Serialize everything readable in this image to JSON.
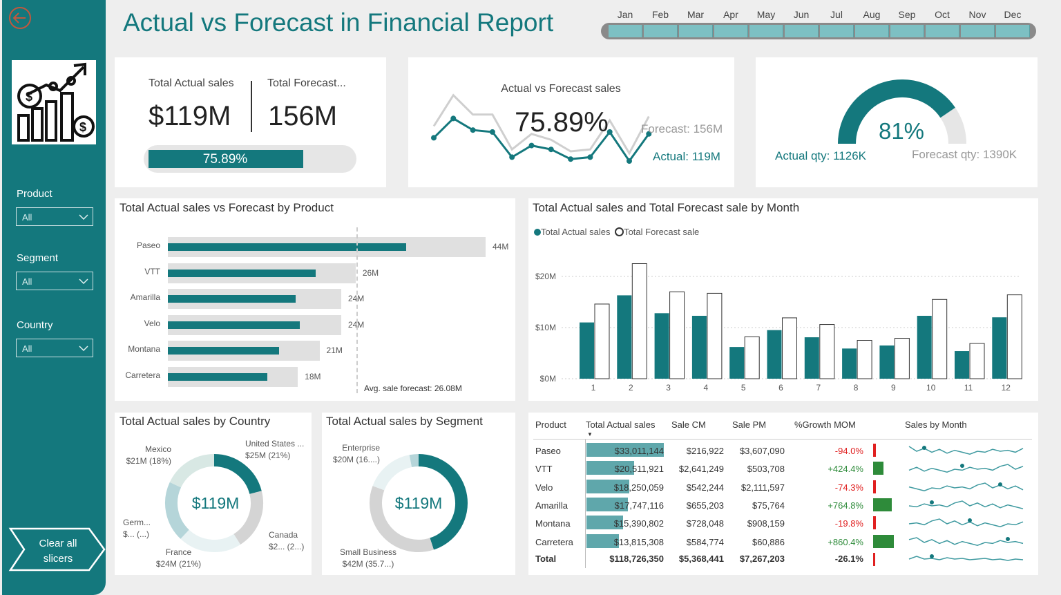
{
  "page": {
    "title": "Actual vs Forecast in Financial Report"
  },
  "colors": {
    "accent": "#14787d",
    "bar_bg": "#e0e0e0",
    "negative": "#e02020",
    "positive": "#2e8b3a"
  },
  "months": [
    "Jan",
    "Feb",
    "Mar",
    "Apr",
    "May",
    "Jun",
    "Jul",
    "Aug",
    "Sep",
    "Oct",
    "Nov",
    "Dec"
  ],
  "sidebar": {
    "back_icon": "back-arrow-icon",
    "logo_icon": "finance-growth-icon",
    "slicers": [
      {
        "label": "Product",
        "value": "All"
      },
      {
        "label": "Segment",
        "value": "All"
      },
      {
        "label": "Country",
        "value": "All"
      }
    ],
    "clear_label": "Clear all slicers"
  },
  "kpi": {
    "actual_label": "Total Actual sales",
    "actual_value": "$119M",
    "forecast_label": "Total Forecast...",
    "forecast_value": "156M",
    "progress_label": "75.89%",
    "progress": 0.7589
  },
  "line_card": {
    "title": "Actual vs Forecast sales",
    "value": "75.89%",
    "forecast_label": "Forecast: 156M",
    "actual_label": "Actual: 119M",
    "actual": [
      11,
      16,
      13,
      12.5,
      6,
      9,
      8,
      5.5,
      6,
      12.5,
      5,
      12
    ],
    "forecast": [
      14,
      22,
      17,
      17,
      8,
      12,
      10.5,
      7.5,
      8,
      15.5,
      7,
      16.5
    ]
  },
  "gauge": {
    "value_label": "81%",
    "value": 0.81,
    "actual_label": "Actual qty: 1126K",
    "forecast_label": "Forecast qty: 1390K"
  },
  "product_chart": {
    "title": "Total Actual sales vs Forecast by Product",
    "items": [
      {
        "name": "Paseo",
        "actual": 33.0,
        "forecast": 44,
        "label": "44M"
      },
      {
        "name": "VTT",
        "actual": 20.5,
        "forecast": 26,
        "label": "26M"
      },
      {
        "name": "Amarilla",
        "actual": 17.7,
        "forecast": 24,
        "label": "24M"
      },
      {
        "name": "Velo",
        "actual": 18.3,
        "forecast": 24,
        "label": "24M"
      },
      {
        "name": "Montana",
        "actual": 15.4,
        "forecast": 21,
        "label": "21M"
      },
      {
        "name": "Carretera",
        "actual": 13.8,
        "forecast": 18,
        "label": "18M"
      }
    ],
    "avg": 26.08,
    "avg_label": "Avg. sale forecast: 26.08M"
  },
  "chart_data": {
    "type": "bar",
    "title": "Total Actual sales and Total Forecast sale by Month",
    "categories": [
      "1",
      "2",
      "3",
      "4",
      "5",
      "6",
      "7",
      "8",
      "9",
      "10",
      "11",
      "12"
    ],
    "series": [
      {
        "name": "Total Actual sales",
        "values": [
          11,
          16.3,
          12.8,
          12.3,
          6.2,
          9.5,
          8.1,
          5.9,
          6.5,
          12.3,
          5.4,
          12
        ]
      },
      {
        "name": "Total Forecast sale",
        "values": [
          14.6,
          22.5,
          17,
          16.7,
          8.2,
          11.9,
          10.6,
          7.5,
          7.9,
          15.5,
          6.9,
          16.4
        ]
      }
    ],
    "yticks": [
      "$0M",
      "$10M",
      "$20M"
    ],
    "ylim": [
      0,
      25
    ],
    "legend": "top-left"
  },
  "country_chart": {
    "title": "Total Actual sales by Country",
    "center": "$119M",
    "labels": [
      {
        "name": "United States ...",
        "value": "$25M (21%)"
      },
      {
        "name": "Canada",
        "value": "$2... (2...)"
      },
      {
        "name": "France",
        "value": "$24M (21%)"
      },
      {
        "name": "Germ...",
        "value": "$... (...)"
      },
      {
        "name": "Mexico",
        "value": "$21M (18%)"
      }
    ],
    "shares": [
      21,
      20,
      21,
      20,
      18
    ]
  },
  "segment_chart": {
    "title": "Total Actual sales by Segment",
    "center": "$119M",
    "labels": [
      {
        "name": "Enterprise",
        "value": "$20M (16....)"
      },
      {
        "name": "Small Business",
        "value": "$42M (35.7...)"
      }
    ],
    "shares": [
      45,
      35.7,
      16.3,
      3
    ]
  },
  "table": {
    "headers": [
      "Product",
      "Total Actual sales",
      "Sale CM",
      "Sale PM",
      "%Growth MOM",
      "Sales by Month"
    ],
    "rows": [
      {
        "product": "Paseo",
        "actual": "$33,011,144",
        "cm": "$216,922",
        "pm": "$3,607,090",
        "growth": "-94.0%",
        "g": -94.0,
        "bar": 1.0
      },
      {
        "product": "VTT",
        "actual": "$20,511,921",
        "cm": "$2,641,249",
        "pm": "$503,708",
        "growth": "+424.4%",
        "g": 424.4,
        "bar": 0.62
      },
      {
        "product": "Velo",
        "actual": "$18,250,059",
        "cm": "$542,244",
        "pm": "$2,111,597",
        "growth": "-74.3%",
        "g": -74.3,
        "bar": 0.55
      },
      {
        "product": "Amarilla",
        "actual": "$17,747,116",
        "cm": "$655,203",
        "pm": "$75,764",
        "growth": "+764.8%",
        "g": 764.8,
        "bar": 0.54
      },
      {
        "product": "Montana",
        "actual": "$15,390,802",
        "cm": "$728,048",
        "pm": "$908,159",
        "growth": "-19.8%",
        "g": -19.8,
        "bar": 0.47
      },
      {
        "product": "Carretera",
        "actual": "$13,815,308",
        "cm": "$584,774",
        "pm": "$60,886",
        "growth": "+860.4%",
        "g": 860.4,
        "bar": 0.42
      }
    ],
    "total": {
      "product": "Total",
      "actual": "$118,726,350",
      "cm": "$5,368,441",
      "pm": "$7,267,203",
      "growth": "-26.1%"
    }
  }
}
